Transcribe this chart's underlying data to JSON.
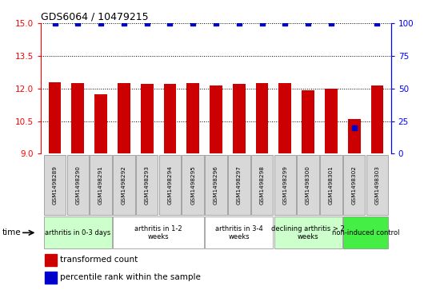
{
  "title": "GDS6064 / 10479215",
  "samples": [
    "GSM1498289",
    "GSM1498290",
    "GSM1498291",
    "GSM1498292",
    "GSM1498293",
    "GSM1498294",
    "GSM1498295",
    "GSM1498296",
    "GSM1498297",
    "GSM1498298",
    "GSM1498299",
    "GSM1498300",
    "GSM1498301",
    "GSM1498302",
    "GSM1498303"
  ],
  "transformed_count": [
    12.3,
    12.25,
    11.75,
    12.25,
    12.2,
    12.2,
    12.25,
    12.15,
    12.2,
    12.25,
    12.25,
    11.9,
    12.0,
    10.6,
    12.15
  ],
  "percentile_rank": [
    100,
    100,
    100,
    100,
    100,
    100,
    100,
    100,
    100,
    100,
    100,
    100,
    100,
    20,
    100
  ],
  "groups": [
    {
      "label": "arthritis in 0-3 days",
      "start": 0,
      "end": 3,
      "color": "#ccffcc"
    },
    {
      "label": "arthritis in 1-2\nweeks",
      "start": 3,
      "end": 7,
      "color": "#ffffff"
    },
    {
      "label": "arthritis in 3-4\nweeks",
      "start": 7,
      "end": 10,
      "color": "#ffffff"
    },
    {
      "label": "declining arthritis > 2\nweeks",
      "start": 10,
      "end": 13,
      "color": "#ccffcc"
    },
    {
      "label": "non-induced control",
      "start": 13,
      "end": 15,
      "color": "#44ee44"
    }
  ],
  "ylim_left": [
    9,
    15
  ],
  "ylim_right": [
    0,
    100
  ],
  "yticks_left": [
    9,
    10.5,
    12,
    13.5,
    15
  ],
  "yticks_right": [
    0,
    25,
    50,
    75,
    100
  ],
  "bar_color": "#cc0000",
  "dot_color": "#0000cc",
  "bar_width": 0.55
}
